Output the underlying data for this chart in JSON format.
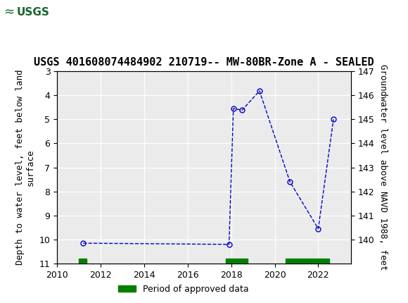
{
  "title": "USGS 401608074484902 210719-- MW-80BR-Zone A - SEALED",
  "ylabel_left": "Depth to water level, feet below land\nsurface",
  "ylabel_right": "Groundwater level above NAVD 1988, feet",
  "ylim_left": [
    11.0,
    3.0
  ],
  "ylim_right": [
    140.0,
    147.0
  ],
  "xlim": [
    2010,
    2023.5
  ],
  "yticks_left": [
    3.0,
    4.0,
    5.0,
    6.0,
    7.0,
    8.0,
    9.0,
    10.0,
    11.0
  ],
  "yticks_right": [
    140.0,
    141.0,
    142.0,
    143.0,
    144.0,
    145.0,
    146.0,
    147.0
  ],
  "xticks": [
    2010,
    2012,
    2014,
    2016,
    2018,
    2020,
    2022
  ],
  "data_x": [
    2011.2,
    2017.9,
    2018.1,
    2018.5,
    2019.3,
    2020.7,
    2022.0,
    2022.7
  ],
  "data_y_depth": [
    10.15,
    10.2,
    4.55,
    4.62,
    3.82,
    7.6,
    9.55,
    5.0
  ],
  "line_color": "#0000CC",
  "marker_color": "#0000CC",
  "marker_facecolor": "none",
  "approved_bars": [
    {
      "x_start": 2011.0,
      "x_end": 2011.35
    },
    {
      "x_start": 2017.75,
      "x_end": 2018.75
    },
    {
      "x_start": 2020.5,
      "x_end": 2022.5
    }
  ],
  "approved_color": "#008000",
  "header_bg_color": "#1a6630",
  "header_text_color": "white",
  "title_fontsize": 11,
  "axis_label_fontsize": 9,
  "tick_fontsize": 9,
  "legend_label": "Period of approved data"
}
